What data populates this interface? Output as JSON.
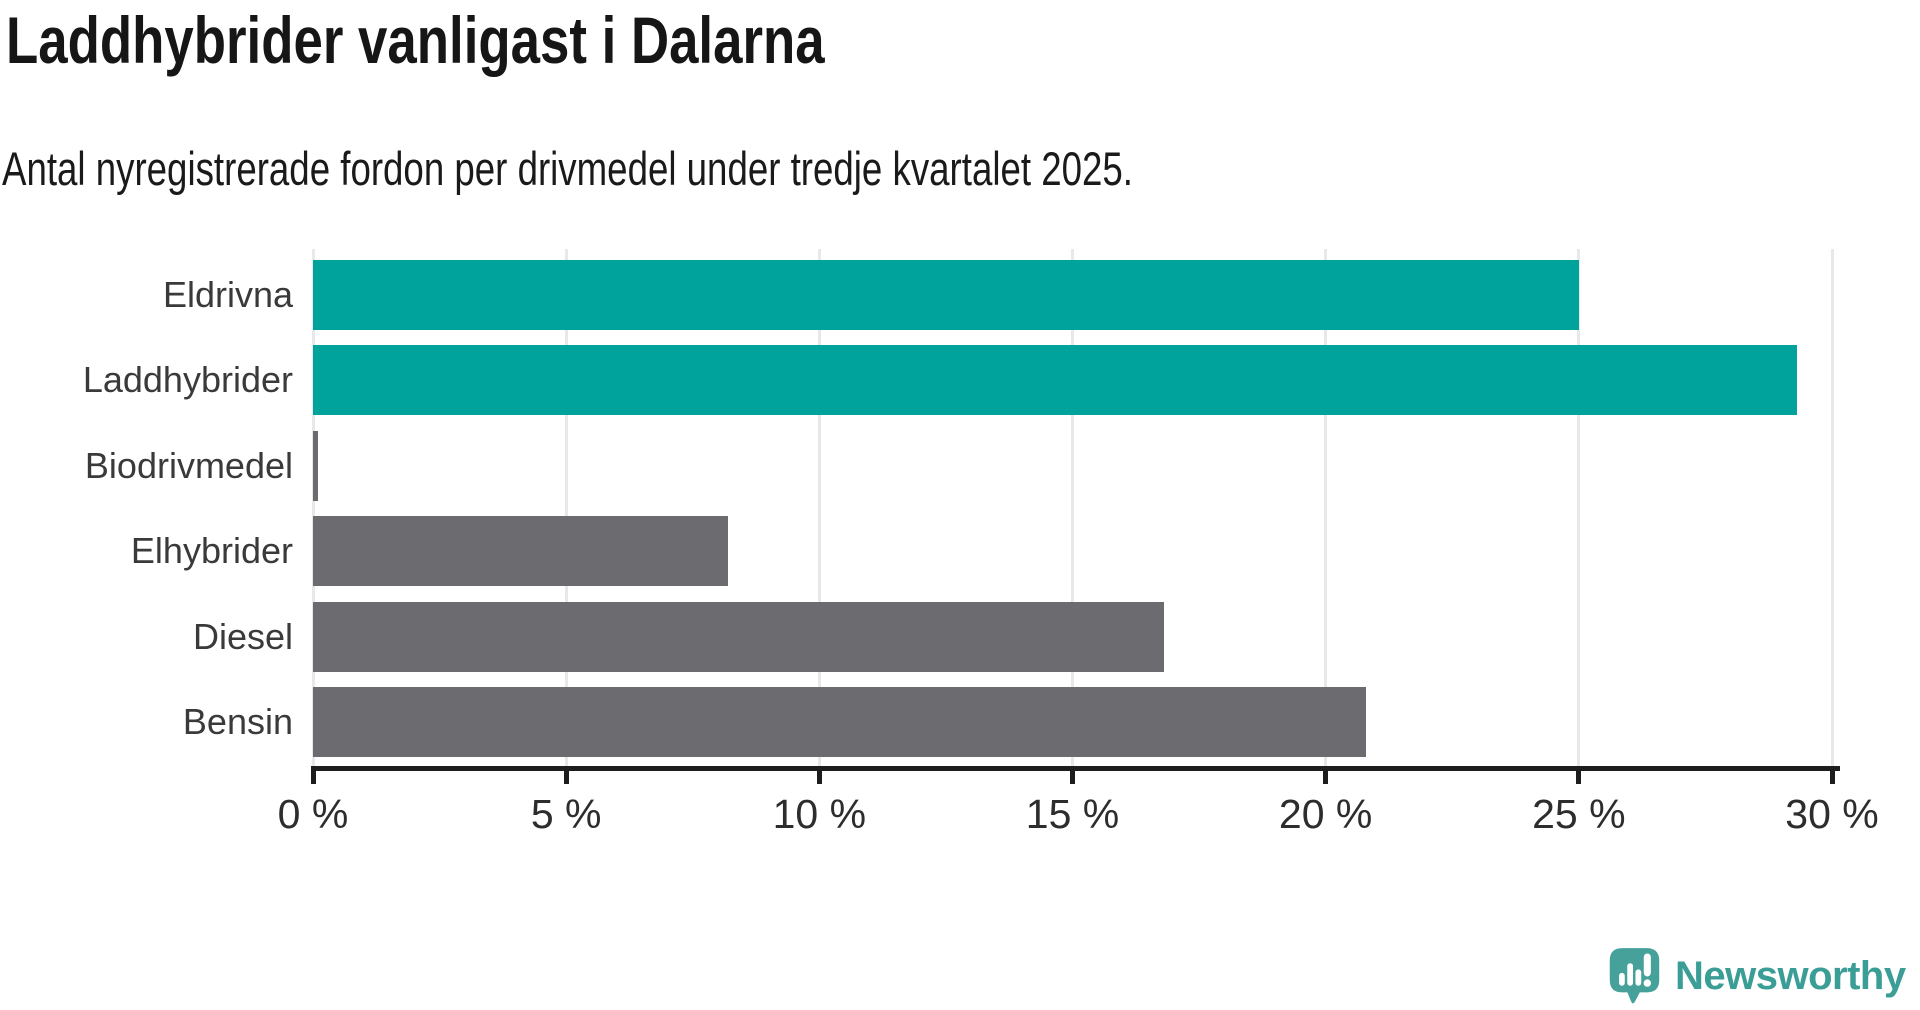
{
  "chart_data": {
    "type": "bar",
    "orientation": "horizontal",
    "title": "Laddhybrider vanligast i Dalarna",
    "subtitle": "Antal nyregistrerade fordon per drivmedel under tredje kvartalet 2025.",
    "categories": [
      "Eldrivna",
      "Laddhybrider",
      "Biodrivmedel",
      "Elhybrider",
      "Diesel",
      "Bensin"
    ],
    "values": [
      25.0,
      29.3,
      0.1,
      8.2,
      16.8,
      20.8
    ],
    "unit": "%",
    "xlim": [
      0,
      30
    ],
    "x_tick_values": [
      0,
      5,
      10,
      15,
      20,
      25,
      30
    ],
    "x_tick_labels": [
      "0 %",
      "5 %",
      "10 %",
      "15 %",
      "20 %",
      "25 %",
      "30 %"
    ],
    "bar_colors": [
      "#00a39b",
      "#00a39b",
      "#6b6b70",
      "#6b6b70",
      "#6b6b70",
      "#6b6b70"
    ],
    "highlight_color": "#00a39b",
    "default_color": "#6b6b70",
    "gridline_color": "#e8e8e8",
    "axis_color": "#1d1d1d",
    "grid": "vertical",
    "legend": "none"
  },
  "brand": {
    "name": "Newsworthy",
    "color": "#3a9e96",
    "icon": "newsworthy-speech-bubble-barchart-icon"
  }
}
